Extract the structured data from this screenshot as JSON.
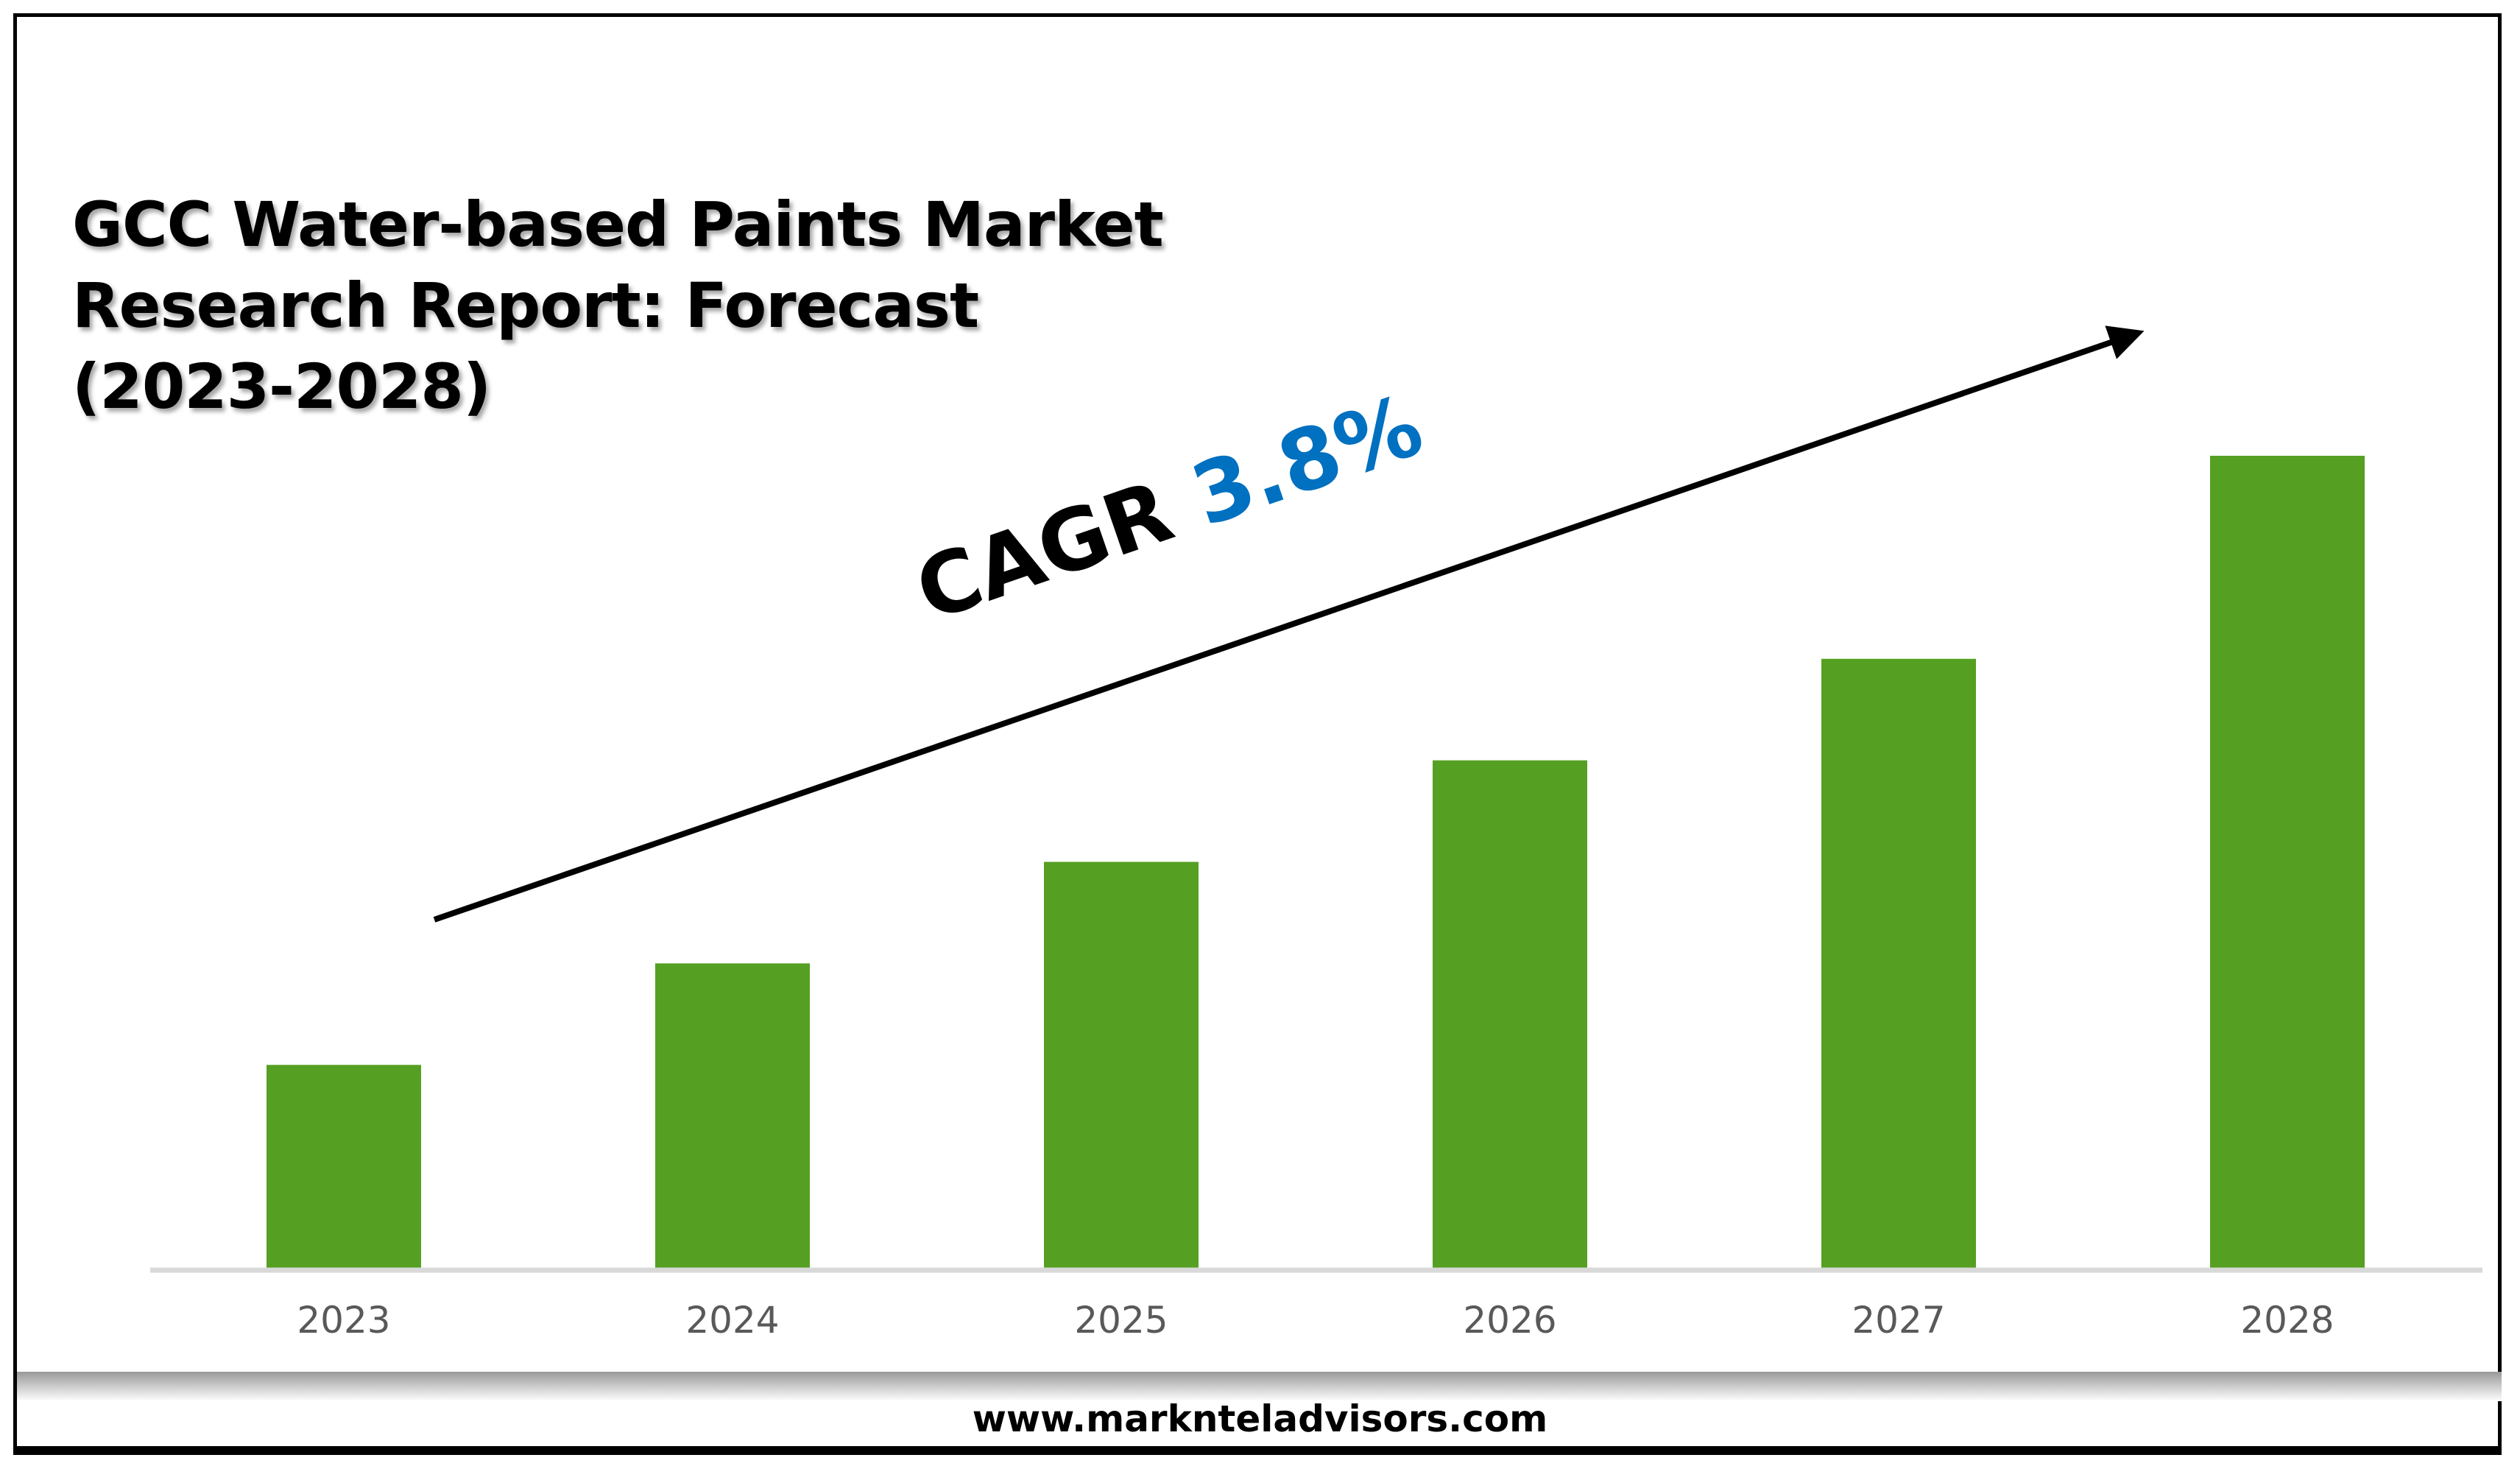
{
  "title": {
    "lines": [
      "GCC Water-based Paints Market",
      "Research Report: Forecast",
      "(2023-2028)"
    ]
  },
  "cagr": {
    "label": "CAGR",
    "value": "3.8%"
  },
  "footer": {
    "url": "www.marknteladvisors.com"
  },
  "colors": {
    "bar": "#55a022",
    "cagr_value": "#0070c0",
    "axis_label": "#595959"
  },
  "chart_data": {
    "type": "bar",
    "title": "GCC Water-based Paints Market Research Report: Forecast (2023-2028)",
    "categories": [
      "2023",
      "2024",
      "2025",
      "2026",
      "2027",
      "2028"
    ],
    "values": [
      1,
      1.5,
      2,
      2.5,
      3,
      4
    ],
    "value_note": "relative bar heights; no y-axis shown",
    "xlabel": "",
    "ylabel": "",
    "ylim": [
      0,
      4
    ],
    "grid": false,
    "annotation": "CAGR 3.8%"
  }
}
